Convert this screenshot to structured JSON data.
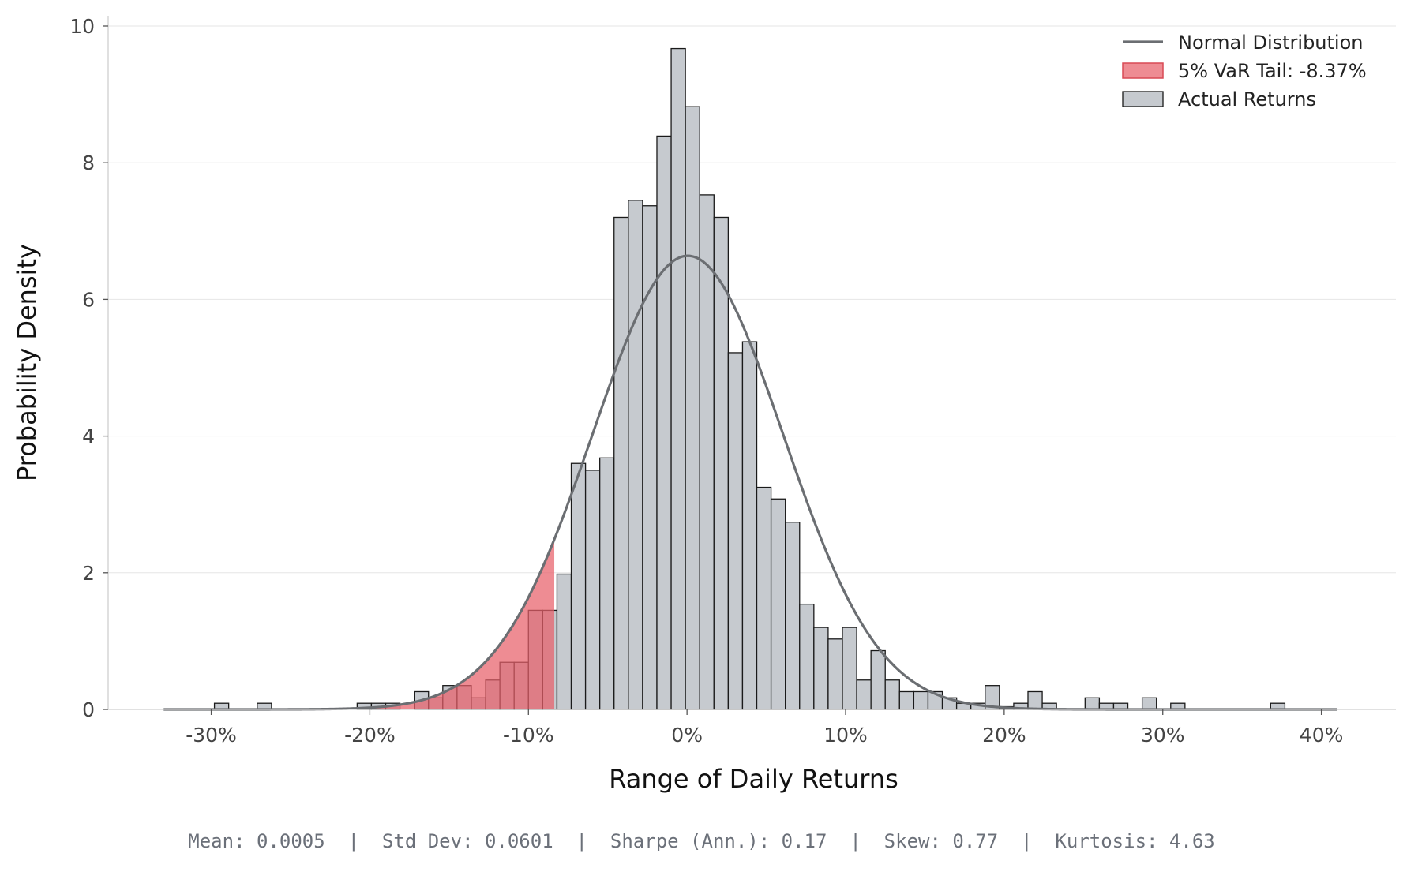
{
  "chart_data": {
    "type": "bar",
    "xlabel": "Range of Daily Returns",
    "ylabel": "Probability Density",
    "xlim": [
      -0.365,
      0.447
    ],
    "ylim": [
      0,
      10.15
    ],
    "x_ticks": [
      -0.3,
      -0.2,
      -0.1,
      0.0,
      0.1,
      0.2,
      0.3,
      0.4
    ],
    "x_tick_labels": [
      "-30%",
      "-20%",
      "-10%",
      "0%",
      "10%",
      "20%",
      "30%",
      "40%"
    ],
    "y_ticks": [
      0,
      2,
      4,
      6,
      8,
      10
    ],
    "y_tick_labels": [
      "0",
      "2",
      "4",
      "6",
      "8",
      "10"
    ],
    "grid": "horizontal",
    "legend_position": "top-right",
    "bin_width": 0.009,
    "histogram": {
      "name": "Actual Returns",
      "color": "#c6cacf",
      "edge_color": "#1a1a1a",
      "bins": [
        [
          -0.2935,
          0.09
        ],
        [
          -0.2665,
          0.09
        ],
        [
          -0.2035,
          0.09
        ],
        [
          -0.1945,
          0.09
        ],
        [
          -0.1855,
          0.09
        ],
        [
          -0.1675,
          0.26
        ],
        [
          -0.1585,
          0.17
        ],
        [
          -0.1495,
          0.35
        ],
        [
          -0.1405,
          0.35
        ],
        [
          -0.1315,
          0.17
        ],
        [
          -0.1225,
          0.43
        ],
        [
          -0.1135,
          0.69
        ],
        [
          -0.1045,
          0.69
        ],
        [
          -0.0955,
          1.45
        ],
        [
          -0.0865,
          1.45
        ],
        [
          -0.0775,
          1.98
        ],
        [
          -0.0685,
          3.6
        ],
        [
          -0.0595,
          3.5
        ],
        [
          -0.0505,
          3.68
        ],
        [
          -0.0415,
          7.2
        ],
        [
          -0.0325,
          7.45
        ],
        [
          -0.0235,
          7.37
        ],
        [
          -0.0145,
          8.39
        ],
        [
          -0.0055,
          9.67
        ],
        [
          0.0035,
          8.82
        ],
        [
          0.0125,
          7.53
        ],
        [
          0.0215,
          7.2
        ],
        [
          0.0305,
          5.22
        ],
        [
          0.0395,
          5.38
        ],
        [
          0.0485,
          3.25
        ],
        [
          0.0575,
          3.08
        ],
        [
          0.0665,
          2.74
        ],
        [
          0.0755,
          1.54
        ],
        [
          0.0845,
          1.2
        ],
        [
          0.0935,
          1.03
        ],
        [
          0.1025,
          1.2
        ],
        [
          0.1115,
          0.43
        ],
        [
          0.1205,
          0.86
        ],
        [
          0.1295,
          0.43
        ],
        [
          0.1385,
          0.26
        ],
        [
          0.1475,
          0.26
        ],
        [
          0.1565,
          0.26
        ],
        [
          0.1655,
          0.17
        ],
        [
          0.1745,
          0.09
        ],
        [
          0.1835,
          0.09
        ],
        [
          0.1925,
          0.35
        ],
        [
          0.2015,
          0.04
        ],
        [
          0.2105,
          0.09
        ],
        [
          0.2195,
          0.26
        ],
        [
          0.2285,
          0.09
        ],
        [
          0.2555,
          0.17
        ],
        [
          0.2645,
          0.09
        ],
        [
          0.2735,
          0.09
        ],
        [
          0.2915,
          0.17
        ],
        [
          0.3095,
          0.09
        ],
        [
          0.3725,
          0.09
        ]
      ]
    },
    "normal_curve": {
      "name": "Normal Distribution",
      "color": "#6b6e72",
      "mean": 0.0005,
      "std": 0.0601,
      "x_range": [
        -0.33,
        0.41
      ]
    },
    "var_tail": {
      "name": "5% VaR Tail: -8.37%",
      "color": "#e8606a",
      "threshold": -0.0837
    }
  },
  "stats_text": "Mean: 0.0005  |  Std Dev: 0.0601  |  Sharpe (Ann.): 0.17  |  Skew: 0.77  |  Kurtosis: 4.63"
}
